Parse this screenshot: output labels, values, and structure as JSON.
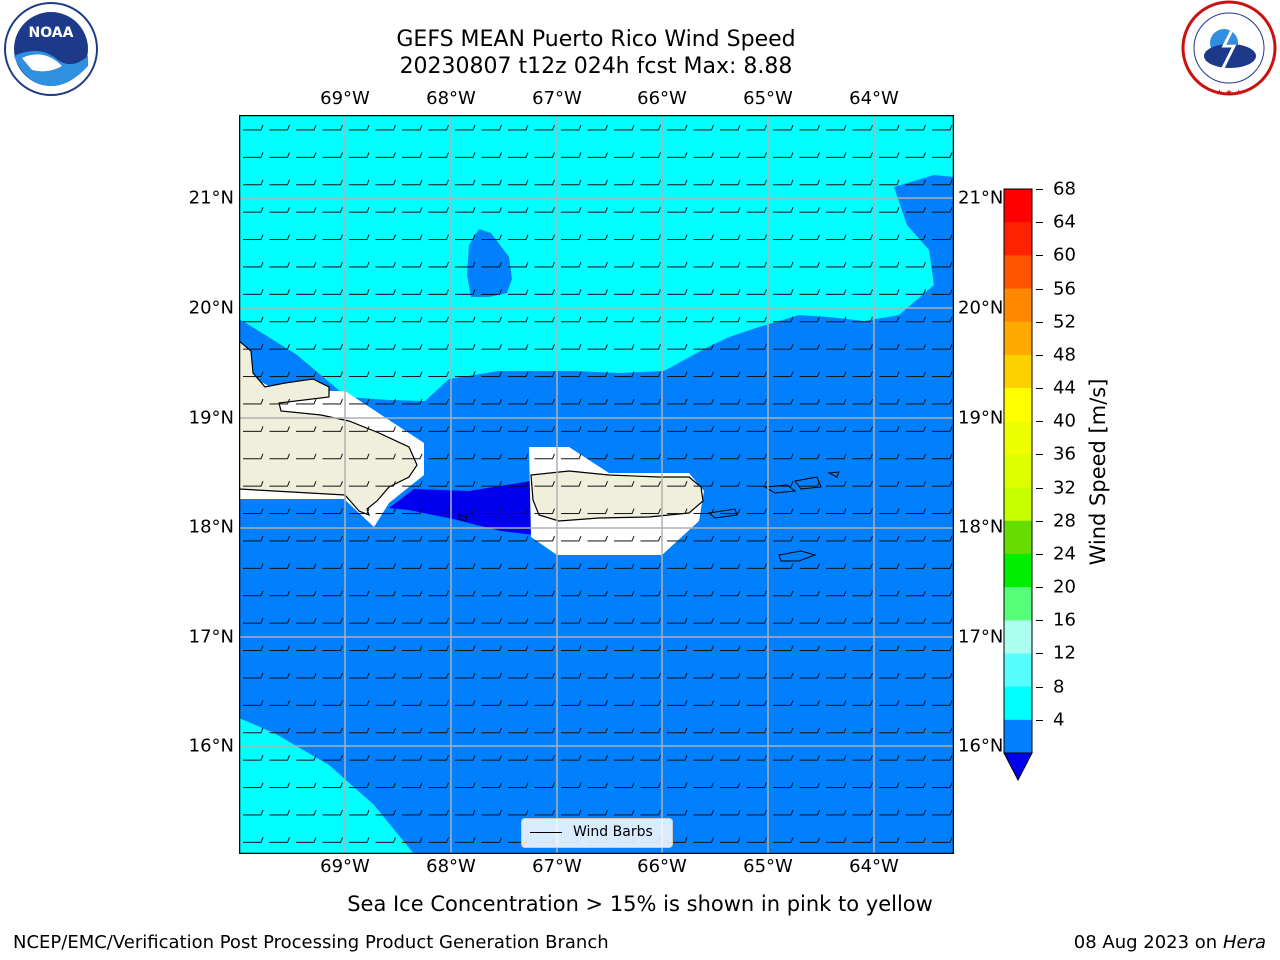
{
  "header": {
    "title_line1": "GEFS MEAN Puerto Rico Wind Speed",
    "title_line2": "20230807 t12z 024h fcst   Max: 8.88"
  },
  "logos": {
    "left_logo_text": "NOAA",
    "left_logo_ring": "NATIONAL OCEANIC AND ATMOSPHERIC ADMINISTRATION · U.S. DEPARTMENT OF COMMERCE",
    "right_logo_ring": "NATIONAL WEATHER SERVICE"
  },
  "map": {
    "longitude_labels": [
      "69°W",
      "68°W",
      "67°W",
      "66°W",
      "65°W",
      "64°W"
    ],
    "latitude_labels": [
      "21°N",
      "20°N",
      "19°N",
      "18°N",
      "17°N",
      "16°N"
    ],
    "colors": {
      "band_4_8": "#0080ff",
      "band_8_12": "#00ffff",
      "band_below_4": "#0000ee",
      "land": "#efefdc",
      "gridline": "#b0b0b0"
    },
    "legend_label": "Wind Barbs"
  },
  "colorbar": {
    "title": "Wind Speed [m/s]",
    "levels": [
      "68",
      "64",
      "60",
      "56",
      "52",
      "48",
      "44",
      "40",
      "36",
      "32",
      "28",
      "24",
      "20",
      "16",
      "12",
      "8",
      "4"
    ],
    "colors_top_to_bottom": [
      "#ff0000",
      "#ff2200",
      "#ff5500",
      "#ff8800",
      "#ffaa00",
      "#ffd000",
      "#ffff00",
      "#eeff00",
      "#ddff00",
      "#c8ff00",
      "#66dd00",
      "#00ee00",
      "#55ff77",
      "#aaffee",
      "#55ffff",
      "#00ffff",
      "#0080ff"
    ],
    "extend_color": "#0000ee"
  },
  "footer": {
    "note": "Sea Ice Concentration > 15% is shown in pink to yellow",
    "left": "NCEP/EMC/Verification Post Processing Product Generation Branch",
    "right_date": "08 Aug 2023 on",
    "right_host": "Hera"
  }
}
